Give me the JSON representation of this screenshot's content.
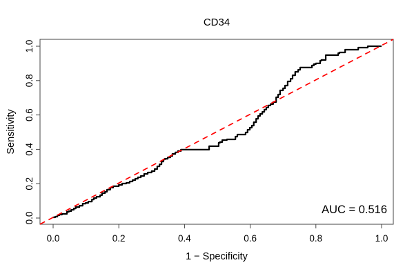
{
  "page": {
    "background": "#ffffff"
  },
  "colors": {
    "curve": "#000000",
    "diagonal": "#FF0000",
    "box": "#444444",
    "text": "#000000"
  },
  "annotation": {
    "auc_label": "AUC = 0.516"
  },
  "chart_data": {
    "type": "line",
    "title": "CD34",
    "xlabel": "1 − Specificity",
    "ylabel": "Sensitivity",
    "xlim": [
      0.0,
      1.0
    ],
    "ylim": [
      0.0,
      1.0
    ],
    "x_ticks": [
      "0.0",
      "0.2",
      "0.4",
      "0.6",
      "0.8",
      "1.0"
    ],
    "y_ticks": [
      "0.0",
      "0.2",
      "0.4",
      "0.6",
      "0.8",
      "1.0"
    ],
    "grid": false,
    "legend": "none",
    "annotations": [
      {
        "text": "AUC = 0.516",
        "x": 0.98,
        "y": 0.05,
        "align": "right"
      }
    ],
    "auc": 0.516,
    "series": [
      {
        "name": "ROC curve",
        "color": "#000000",
        "style": "solid",
        "width": 2.2,
        "step": true,
        "points": [
          [
            0.0,
            0.0
          ],
          [
            0.006,
            0.004
          ],
          [
            0.013,
            0.008
          ],
          [
            0.019,
            0.016
          ],
          [
            0.027,
            0.02
          ],
          [
            0.042,
            0.024
          ],
          [
            0.048,
            0.036
          ],
          [
            0.055,
            0.04
          ],
          [
            0.063,
            0.048
          ],
          [
            0.069,
            0.056
          ],
          [
            0.08,
            0.064
          ],
          [
            0.09,
            0.072
          ],
          [
            0.099,
            0.084
          ],
          [
            0.107,
            0.088
          ],
          [
            0.118,
            0.096
          ],
          [
            0.124,
            0.108
          ],
          [
            0.132,
            0.116
          ],
          [
            0.143,
            0.124
          ],
          [
            0.149,
            0.133
          ],
          [
            0.158,
            0.145
          ],
          [
            0.164,
            0.153
          ],
          [
            0.174,
            0.165
          ],
          [
            0.183,
            0.177
          ],
          [
            0.2,
            0.185
          ],
          [
            0.21,
            0.193
          ],
          [
            0.223,
            0.201
          ],
          [
            0.233,
            0.205
          ],
          [
            0.242,
            0.213
          ],
          [
            0.25,
            0.221
          ],
          [
            0.258,
            0.229
          ],
          [
            0.267,
            0.237
          ],
          [
            0.277,
            0.245
          ],
          [
            0.288,
            0.257
          ],
          [
            0.3,
            0.265
          ],
          [
            0.309,
            0.273
          ],
          [
            0.317,
            0.285
          ],
          [
            0.324,
            0.301
          ],
          [
            0.33,
            0.313
          ],
          [
            0.336,
            0.329
          ],
          [
            0.34,
            0.341
          ],
          [
            0.349,
            0.345
          ],
          [
            0.357,
            0.353
          ],
          [
            0.363,
            0.361
          ],
          [
            0.372,
            0.373
          ],
          [
            0.38,
            0.382
          ],
          [
            0.389,
            0.39
          ],
          [
            0.397,
            0.398
          ],
          [
            0.475,
            0.398
          ],
          [
            0.481,
            0.418
          ],
          [
            0.504,
            0.418
          ],
          [
            0.508,
            0.438
          ],
          [
            0.515,
            0.442
          ],
          [
            0.529,
            0.454
          ],
          [
            0.555,
            0.458
          ],
          [
            0.561,
            0.474
          ],
          [
            0.586,
            0.486
          ],
          [
            0.592,
            0.498
          ],
          [
            0.599,
            0.514
          ],
          [
            0.605,
            0.526
          ],
          [
            0.611,
            0.538
          ],
          [
            0.618,
            0.558
          ],
          [
            0.624,
            0.578
          ],
          [
            0.63,
            0.594
          ],
          [
            0.637,
            0.606
          ],
          [
            0.643,
            0.618
          ],
          [
            0.649,
            0.631
          ],
          [
            0.655,
            0.643
          ],
          [
            0.662,
            0.655
          ],
          [
            0.67,
            0.663
          ],
          [
            0.679,
            0.675
          ],
          [
            0.685,
            0.703
          ],
          [
            0.691,
            0.719
          ],
          [
            0.7,
            0.743
          ],
          [
            0.706,
            0.755
          ],
          [
            0.714,
            0.771
          ],
          [
            0.723,
            0.795
          ],
          [
            0.729,
            0.811
          ],
          [
            0.737,
            0.831
          ],
          [
            0.746,
            0.851
          ],
          [
            0.752,
            0.863
          ],
          [
            0.758,
            0.876
          ],
          [
            0.788,
            0.876
          ],
          [
            0.794,
            0.888
          ],
          [
            0.8,
            0.896
          ],
          [
            0.813,
            0.9
          ],
          [
            0.817,
            0.916
          ],
          [
            0.83,
            0.92
          ],
          [
            0.834,
            0.948
          ],
          [
            0.868,
            0.948
          ],
          [
            0.872,
            0.96
          ],
          [
            0.889,
            0.964
          ],
          [
            0.893,
            0.98
          ],
          [
            0.929,
            0.98
          ],
          [
            0.933,
            0.992
          ],
          [
            0.958,
            0.992
          ],
          [
            0.962,
            1.0
          ],
          [
            0.985,
            1.0
          ],
          [
            1.0,
            1.0
          ]
        ]
      },
      {
        "name": "Chance diagonal",
        "color": "#FF0000",
        "style": "dashed",
        "width": 1.7,
        "step": false,
        "span_full_box": true,
        "points": [
          [
            0.0,
            0.0
          ],
          [
            1.0,
            1.0
          ]
        ]
      }
    ]
  }
}
